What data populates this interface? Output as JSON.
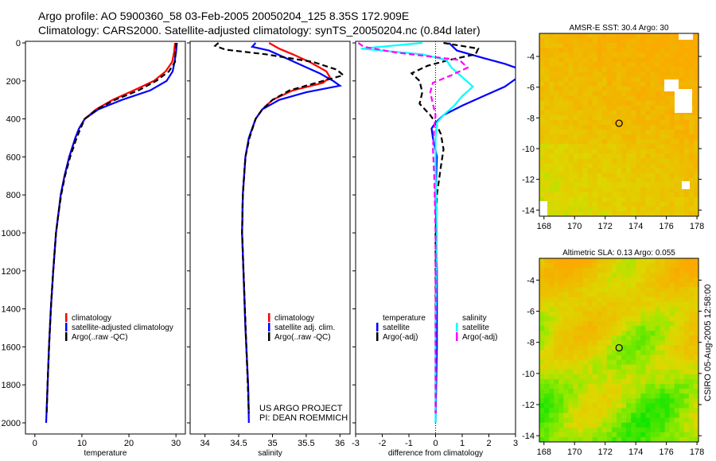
{
  "header": {
    "line1": "Argo profile: AO 5900360_58 03-Feb-2005 20050204_125 8.35S 172.909E",
    "line2": "Climatology: CARS2000. Satellite-adjusted climatology: synTS_20050204.nc (0.84d later)"
  },
  "side_label": "CSIRO 05-Aug-2005 12:58:00",
  "credit": {
    "line1": "US ARGO PROJECT",
    "line2": "PI: DEAN ROEMMICH"
  },
  "colors": {
    "clim": "#ff0000",
    "sat": "#0000ff",
    "argo": "#000000",
    "sal_sat": "#00ffff",
    "sal_argo": "#ff00ff"
  },
  "chart_data": [
    {
      "type": "line",
      "id": "temp",
      "xlabel": "temperature",
      "xlim": [
        -2,
        32
      ],
      "ylim": [
        2050,
        0
      ],
      "xticks": [
        0,
        10,
        20,
        30
      ],
      "yticks": [
        0,
        200,
        400,
        600,
        800,
        1000,
        1200,
        1400,
        1600,
        1800,
        2000
      ],
      "legend": [
        "climatology",
        "satellite-adjusted climatology",
        "Argo(..raw -QC)"
      ],
      "series": [
        {
          "name": "climatology",
          "color": "#ff0000",
          "dash": false,
          "depth": [
            0,
            50,
            100,
            150,
            200,
            250,
            300,
            350,
            400,
            450,
            500,
            600,
            700,
            800,
            900,
            1000,
            1200,
            1400,
            1600,
            1800,
            1950
          ],
          "values": [
            29.8,
            29.6,
            29.2,
            27.8,
            25.3,
            21,
            16.5,
            13,
            10.6,
            9.4,
            8.6,
            7.3,
            6.3,
            5.5,
            5,
            4.5,
            3.9,
            3.4,
            3,
            2.7,
            2.5
          ]
        },
        {
          "name": "satellite-adjusted climatology",
          "color": "#0000ff",
          "dash": false,
          "depth": [
            0,
            50,
            100,
            150,
            200,
            250,
            300,
            350,
            400,
            450,
            500,
            600,
            700,
            800,
            900,
            1000,
            1200,
            1400,
            1600,
            1800,
            2000
          ],
          "values": [
            30.2,
            30,
            29.7,
            29.3,
            28,
            24.5,
            18.5,
            13.5,
            10.6,
            9.4,
            8.6,
            7.3,
            6.3,
            5.5,
            5,
            4.5,
            3.9,
            3.4,
            3,
            2.7,
            2.4
          ]
        },
        {
          "name": "Argo(..raw -QC)",
          "color": "#000000",
          "dash": true,
          "depth": [
            0,
            50,
            100,
            150,
            200,
            250,
            300,
            350,
            400,
            450,
            500,
            600,
            700,
            800,
            900,
            1000,
            1200,
            1400,
            1600,
            1800,
            1950
          ],
          "values": [
            30,
            29.9,
            29.8,
            28.5,
            25.8,
            22,
            17,
            13.2,
            10.6,
            9.7,
            8.9,
            7.5,
            6.4,
            5.6,
            5,
            4.5,
            3.9,
            3.4,
            3,
            2.7,
            2.5
          ]
        }
      ]
    },
    {
      "type": "line",
      "id": "sal",
      "xlabel": "salinity",
      "xlim": [
        33.78,
        36.15
      ],
      "ylim": [
        2050,
        0
      ],
      "xticks": [
        34,
        34.5,
        35,
        35.5,
        36
      ],
      "legend": [
        "climatology",
        "satellite adj. clim.",
        "Argo(..raw -QC)"
      ],
      "series": [
        {
          "name": "climatology",
          "color": "#ff0000",
          "dash": false,
          "depth": [
            0,
            30,
            60,
            100,
            150,
            180,
            210,
            250,
            300,
            350,
            400,
            500,
            600,
            800,
            1000,
            1200,
            1500,
            1800,
            1950
          ],
          "values": [
            34.95,
            35.1,
            35.3,
            35.55,
            35.8,
            35.85,
            35.75,
            35.3,
            35.0,
            34.85,
            34.75,
            34.65,
            34.6,
            34.56,
            34.55,
            34.57,
            34.6,
            34.64,
            34.65
          ]
        },
        {
          "name": "satellite adj. clim.",
          "color": "#0000ff",
          "dash": false,
          "depth": [
            0,
            20,
            40,
            80,
            120,
            160,
            200,
            225,
            260,
            300,
            350,
            400,
            500,
            600,
            800,
            1000,
            1200,
            1500,
            1800,
            2000
          ],
          "values": [
            34.75,
            34.7,
            34.95,
            35.2,
            35.45,
            35.7,
            35.9,
            36.0,
            35.5,
            35.1,
            34.85,
            34.75,
            34.65,
            34.6,
            34.56,
            34.55,
            34.57,
            34.6,
            34.64,
            34.65
          ]
        },
        {
          "name": "Argo(..raw -QC)",
          "color": "#000000",
          "dash": true,
          "depth": [
            0,
            15,
            35,
            60,
            100,
            140,
            170,
            200,
            250,
            300,
            350,
            400,
            500,
            600,
            800,
            1000,
            1950
          ],
          "values": [
            34.2,
            34.15,
            34.3,
            34.9,
            35.6,
            35.95,
            36.05,
            35.75,
            35.25,
            35.0,
            34.85,
            34.75,
            34.66,
            34.6,
            34.56,
            34.55,
            34.65
          ]
        }
      ]
    },
    {
      "type": "line",
      "id": "diff",
      "xlabel": "difference from climatology",
      "xlim": [
        -3,
        3
      ],
      "ylim": [
        2050,
        0
      ],
      "xticks": [
        -3,
        -2,
        -1,
        0,
        1,
        2,
        3
      ],
      "legend_left": [
        "temperature",
        "satellite",
        "Argo(-adj)"
      ],
      "legend_right": [
        "salinity",
        "satellite",
        "Argo(-adj)"
      ],
      "series": [
        {
          "name": "temperature satellite",
          "color": "#0000ff",
          "dash": false,
          "depth": [
            0,
            40,
            80,
            110,
            140,
            180,
            230,
            280,
            330,
            380,
            420,
            450,
            500,
            600,
            800,
            1200,
            1600,
            2000
          ],
          "values": [
            0.5,
            0.8,
            1.8,
            2.6,
            3.2,
            3.1,
            2.6,
            1.8,
            1.0,
            0.3,
            0,
            -0.15,
            -0.1,
            0.05,
            0,
            0.05,
            0.05,
            0
          ]
        },
        {
          "name": "temperature Argo(-adj)",
          "color": "#000000",
          "dash": true,
          "depth": [
            0,
            30,
            60,
            90,
            120,
            160,
            200,
            260,
            320,
            380,
            420,
            480,
            560,
            650,
            800,
            1000,
            1400,
            1950
          ],
          "values": [
            0.3,
            1.6,
            1.5,
            0.5,
            -0.3,
            -0.9,
            -0.6,
            -0.5,
            -0.6,
            -0.2,
            0,
            0.2,
            0.3,
            0.2,
            0.05,
            0,
            0,
            0
          ]
        },
        {
          "name": "salinity satellite",
          "color": "#00ffff",
          "dash": false,
          "depth": [
            0,
            30,
            60,
            90,
            130,
            180,
            230,
            280,
            330,
            380,
            420,
            500,
            700,
            1000,
            1500,
            2000
          ],
          "values": [
            -0.5,
            -2.8,
            -0.5,
            0.4,
            0.6,
            1.0,
            1.4,
            1.0,
            0.7,
            0.3,
            0.05,
            0,
            0,
            0.05,
            0,
            0
          ]
        },
        {
          "name": "salinity Argo(-adj)",
          "color": "#ff00ff",
          "dash": true,
          "depth": [
            0,
            20,
            50,
            90,
            130,
            170,
            210,
            260,
            320,
            380,
            450,
            550,
            700,
            1000,
            1500,
            1950
          ],
          "values": [
            -2.9,
            -2.7,
            -1.5,
            0.9,
            1.2,
            0.6,
            -0.1,
            -0.2,
            -0.1,
            0,
            -0.05,
            -0.1,
            -0.05,
            0,
            0,
            0
          ]
        }
      ]
    },
    {
      "type": "heatmap",
      "id": "sst",
      "title": "AMSR-E SST: 30.4 Argo: 30",
      "xlim": [
        167.7,
        178.1
      ],
      "ylim": [
        -14.4,
        -2.5
      ],
      "xticks": [
        168,
        170,
        172,
        174,
        176,
        178
      ],
      "yticks": [
        -4,
        -6,
        -8,
        -10,
        -12,
        -14
      ],
      "argo_point": [
        172.909,
        -8.35
      ]
    },
    {
      "type": "heatmap",
      "id": "sla",
      "title": "Altimetric SLA: 0.13 Argo: 0.055",
      "xlim": [
        167.7,
        178.1
      ],
      "ylim": [
        -14.4,
        -2.6
      ],
      "xticks": [
        168,
        170,
        172,
        174,
        176,
        178
      ],
      "yticks": [
        -4,
        -6,
        -8,
        -10,
        -12,
        -14
      ],
      "argo_point": [
        172.909,
        -8.35
      ]
    }
  ]
}
